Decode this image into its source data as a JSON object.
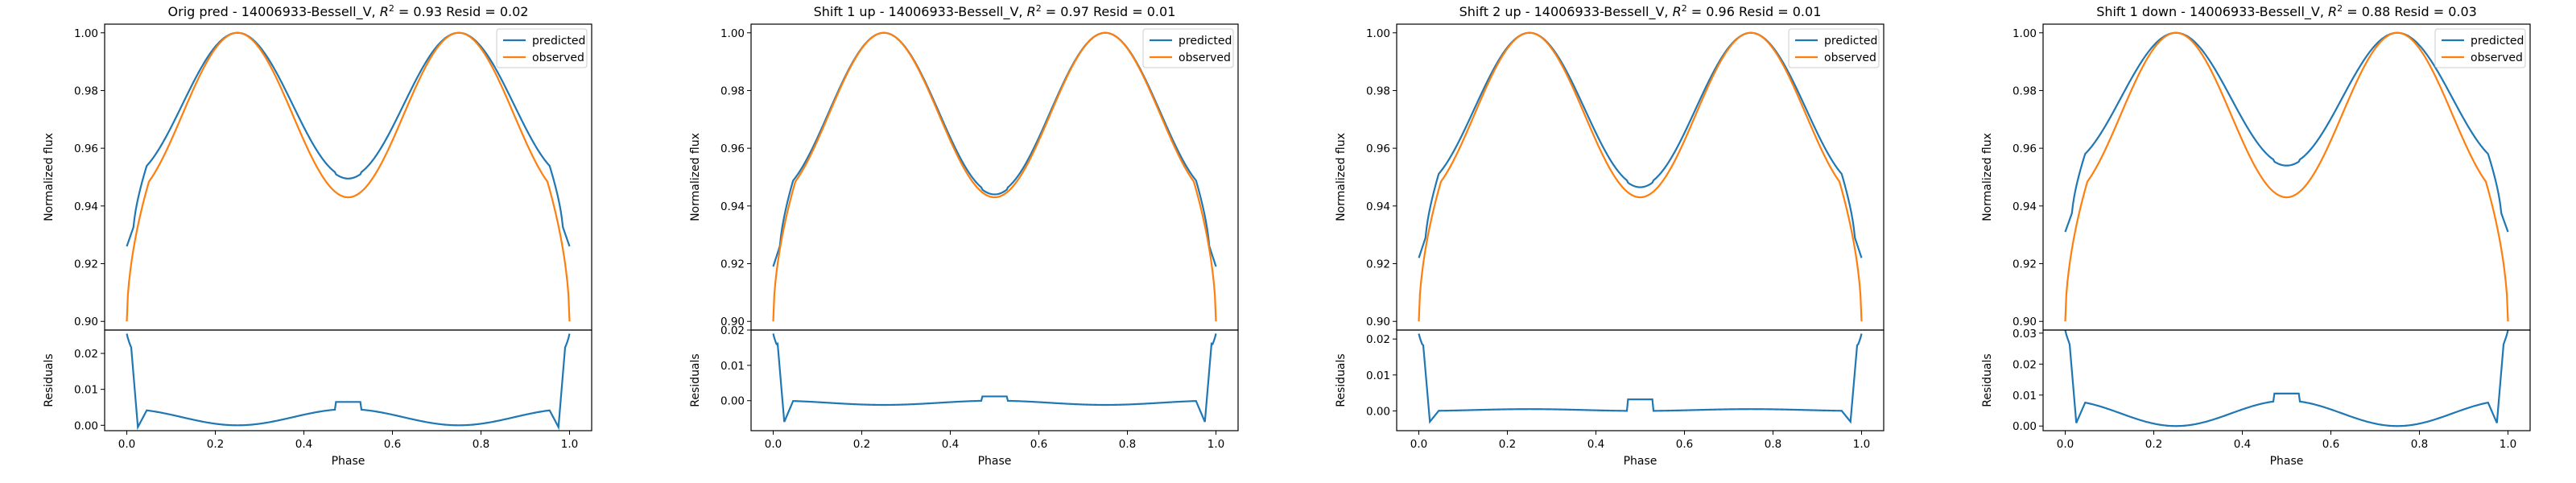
{
  "colors": {
    "predicted": "#1f77b4",
    "observed": "#ff7f0e",
    "axes": "#000000",
    "background": "#ffffff"
  },
  "chart_data": [
    {
      "type": "line",
      "title_prefix": "Orig pred - 14006933-Bessell_V, ",
      "title_r2": "R",
      "title_r2_sup": "2",
      "title_suffix": " = 0.93 Resid = 0.02",
      "legend": [
        "predicted",
        "observed"
      ],
      "legend_position": "top-right",
      "flux": {
        "ylabel": "Normalized flux",
        "ylim": [
          0.897,
          1.003
        ],
        "yticks": [
          "0.90",
          "0.92",
          "0.94",
          "0.96",
          "0.98",
          "1.00"
        ],
        "pred_dip": 0.95,
        "pred_edge": 0.926,
        "obs_dip": 0.943,
        "obs_edge": 0.9
      },
      "resid": {
        "ylabel": "Residuals",
        "ylim": [
          -0.0015,
          0.0265
        ],
        "yticks": [
          "0.00",
          "0.01",
          "0.02"
        ],
        "xlabel": "Phase",
        "xticks": [
          "0.0",
          "0.2",
          "0.4",
          "0.6",
          "0.8",
          "1.0"
        ],
        "base": 0.0,
        "amp": 0.0045,
        "mid": 0.0065,
        "spike": 0.0255,
        "low": -0.0005
      }
    },
    {
      "type": "line",
      "title_prefix": "Shift 1 up - 14006933-Bessell_V, ",
      "title_r2": "R",
      "title_r2_sup": "2",
      "title_suffix": " = 0.97 Resid = 0.01",
      "legend": [
        "predicted",
        "observed"
      ],
      "legend_position": "top-right",
      "flux": {
        "ylabel": "Normalized flux",
        "ylim": [
          0.897,
          1.003
        ],
        "yticks": [
          "0.90",
          "0.92",
          "0.94",
          "0.96",
          "0.98",
          "1.00"
        ],
        "pred_dip": 0.9445,
        "pred_edge": 0.919,
        "obs_dip": 0.943,
        "obs_edge": 0.9
      },
      "resid": {
        "ylabel": "Residuals",
        "ylim": [
          -0.0085,
          0.02
        ],
        "yticks": [
          "0.00",
          "0.01",
          "0.02"
        ],
        "xlabel": "Phase",
        "xticks": [
          "0.0",
          "0.2",
          "0.4",
          "0.6",
          "0.8",
          "1.0"
        ],
        "base": -0.0012,
        "amp": 0.0012,
        "mid": 0.0012,
        "spike": 0.019,
        "low": -0.006
      }
    },
    {
      "type": "line",
      "title_prefix": "Shift 2 up - 14006933-Bessell_V, ",
      "title_r2": "R",
      "title_r2_sup": "2",
      "title_suffix": " = 0.96 Resid = 0.01",
      "legend": [
        "predicted",
        "observed"
      ],
      "legend_position": "top-right",
      "flux": {
        "ylabel": "Normalized flux",
        "ylim": [
          0.897,
          1.003
        ],
        "yticks": [
          "0.90",
          "0.92",
          "0.94",
          "0.96",
          "0.98",
          "1.00"
        ],
        "pred_dip": 0.947,
        "pred_edge": 0.922,
        "obs_dip": 0.943,
        "obs_edge": 0.9
      },
      "resid": {
        "ylabel": "Residuals",
        "ylim": [
          -0.0055,
          0.0225
        ],
        "yticks": [
          "0.00",
          "0.01",
          "0.02"
        ],
        "xlabel": "Phase",
        "xticks": [
          "0.0",
          "0.2",
          "0.4",
          "0.6",
          "0.8",
          "1.0"
        ],
        "base": 0.0005,
        "amp": -0.0005,
        "mid": 0.0032,
        "spike": 0.0215,
        "low": -0.003
      }
    },
    {
      "type": "line",
      "title_prefix": "Shift 1 down - 14006933-Bessell_V, ",
      "title_r2": "R",
      "title_r2_sup": "2",
      "title_suffix": " = 0.88 Resid = 0.03",
      "legend": [
        "predicted",
        "observed"
      ],
      "legend_position": "top-right",
      "flux": {
        "ylabel": "Normalized flux",
        "ylim": [
          0.897,
          1.003
        ],
        "yticks": [
          "0.90",
          "0.92",
          "0.94",
          "0.96",
          "0.98",
          "1.00"
        ],
        "pred_dip": 0.9545,
        "pred_edge": 0.931,
        "obs_dip": 0.943,
        "obs_edge": 0.9
      },
      "resid": {
        "ylabel": "Residuals",
        "ylim": [
          -0.0015,
          0.031
        ],
        "yticks": [
          "0.00",
          "0.01",
          "0.02",
          "0.03"
        ],
        "xlabel": "Phase",
        "xticks": [
          "0.0",
          "0.2",
          "0.4",
          "0.6",
          "0.8",
          "1.0"
        ],
        "base": 0.0,
        "amp": 0.0082,
        "mid": 0.0105,
        "spike": 0.031,
        "low": 0.001
      }
    }
  ]
}
